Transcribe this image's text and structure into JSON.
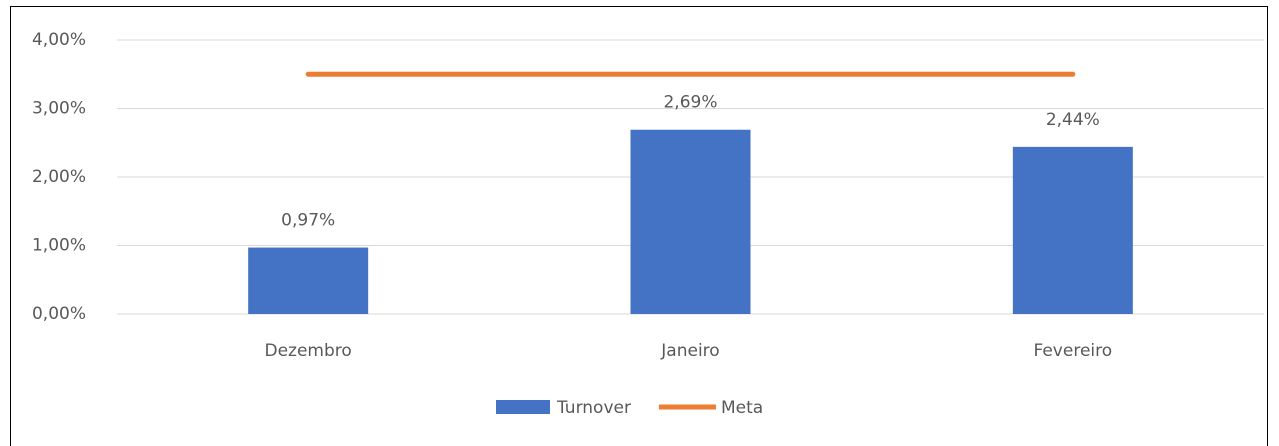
{
  "chart_data": {
    "type": "bar",
    "categories": [
      "Dezembro",
      "Janeiro",
      "Fevereiro"
    ],
    "series": [
      {
        "name": "Turnover",
        "type": "bar",
        "color": "#4472c4",
        "values": [
          0.97,
          2.69,
          2.44
        ],
        "value_labels": [
          "0,97%",
          "2,69%",
          "2,44%"
        ]
      },
      {
        "name": "Meta",
        "type": "line",
        "color": "#ed7d31",
        "values": [
          3.5,
          3.5,
          3.5
        ]
      }
    ],
    "ylim": [
      0,
      4
    ],
    "yticks": [
      {
        "value": 0,
        "label": "0,00%"
      },
      {
        "value": 1,
        "label": "1,00%"
      },
      {
        "value": 2,
        "label": "2,00%"
      },
      {
        "value": 3,
        "label": "3,00%"
      },
      {
        "value": 4,
        "label": "4,00%"
      }
    ],
    "grid": true,
    "legend": "bottom"
  }
}
